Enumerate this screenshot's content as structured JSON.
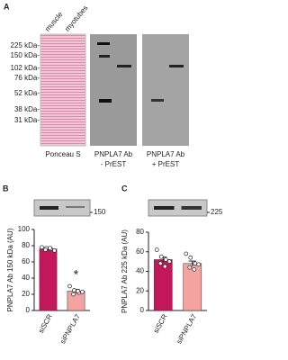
{
  "panel_a": {
    "label": "A",
    "lanes": [
      "muscle",
      "myotubes"
    ],
    "markers": [
      "225 kDa-",
      "150 kDa-",
      "102 kDa-",
      "76 kDa-",
      "52 kDa-",
      "38 kDa-",
      "31 kDa-"
    ],
    "captions": [
      [
        "Ponceau S"
      ],
      [
        "PNPLA7 Ab",
        "- PrEST"
      ],
      [
        "PNPLA7 Ab",
        "+ PrEST"
      ]
    ]
  },
  "chart_data": [
    {
      "type": "bar",
      "panel": "B",
      "blot_label": "150",
      "y_label": "PNPLA7 Ab 150 kDa (AU)",
      "categories": [
        "siSCR",
        "siPNPLA7"
      ],
      "values": [
        76,
        24
      ],
      "errors": [
        1.5,
        2
      ],
      "points": [
        [
          78,
          77,
          76,
          75,
          77,
          74
        ],
        [
          30,
          25,
          22,
          20,
          24,
          23
        ]
      ],
      "colors": [
        "#c2185b",
        "#f4a3a0"
      ],
      "annotation": "*",
      "ylim": [
        0,
        100
      ],
      "yticks": [
        0,
        20,
        40,
        60,
        80,
        100
      ]
    },
    {
      "type": "bar",
      "panel": "C",
      "blot_label": "225",
      "y_label": "PNPLA7 Ab 225 kDa (AU)",
      "categories": [
        "siSCR",
        "siPNPLA7"
      ],
      "values": [
        52,
        48
      ],
      "errors": [
        2.5,
        2.5
      ],
      "points": [
        [
          62,
          55,
          52,
          48,
          45,
          50
        ],
        [
          58,
          54,
          48,
          44,
          42,
          47
        ]
      ],
      "colors": [
        "#c2185b",
        "#f4a3a0"
      ],
      "ylim": [
        0,
        80
      ],
      "yticks": [
        0,
        20,
        40,
        60,
        80
      ]
    }
  ]
}
